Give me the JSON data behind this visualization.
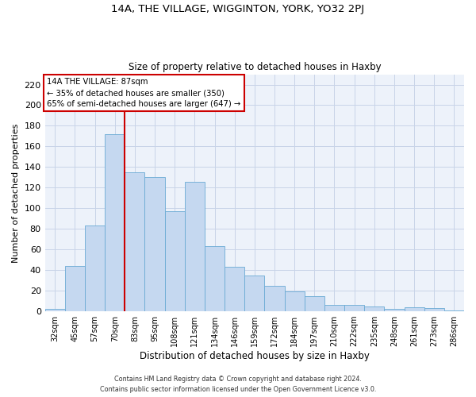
{
  "title_line1": "14A, THE VILLAGE, WIGGINTON, YORK, YO32 2PJ",
  "title_line2": "Size of property relative to detached houses in Haxby",
  "xlabel": "Distribution of detached houses by size in Haxby",
  "ylabel": "Number of detached properties",
  "categories": [
    "32sqm",
    "45sqm",
    "57sqm",
    "70sqm",
    "83sqm",
    "95sqm",
    "108sqm",
    "121sqm",
    "134sqm",
    "146sqm",
    "159sqm",
    "172sqm",
    "184sqm",
    "197sqm",
    "210sqm",
    "222sqm",
    "235sqm",
    "248sqm",
    "261sqm",
    "273sqm",
    "286sqm"
  ],
  "values": [
    2,
    44,
    83,
    172,
    135,
    130,
    97,
    126,
    63,
    43,
    35,
    25,
    19,
    15,
    6,
    6,
    5,
    2,
    4,
    3,
    1
  ],
  "bar_color": "#c5d8f0",
  "bar_edge_color": "#6aaad4",
  "annotation_text_line1": "14A THE VILLAGE: 87sqm",
  "annotation_text_line2": "← 35% of detached houses are smaller (350)",
  "annotation_text_line3": "65% of semi-detached houses are larger (647) →",
  "annotation_box_color": "#ffffff",
  "annotation_box_edge_color": "#cc0000",
  "vline_color": "#cc0000",
  "grid_color": "#c8d4e8",
  "background_color": "#edf2fa",
  "ylim": [
    0,
    230
  ],
  "yticks": [
    0,
    20,
    40,
    60,
    80,
    100,
    120,
    140,
    160,
    180,
    200,
    220
  ],
  "footnote_line1": "Contains HM Land Registry data © Crown copyright and database right 2024.",
  "footnote_line2": "Contains public sector information licensed under the Open Government Licence v3.0."
}
